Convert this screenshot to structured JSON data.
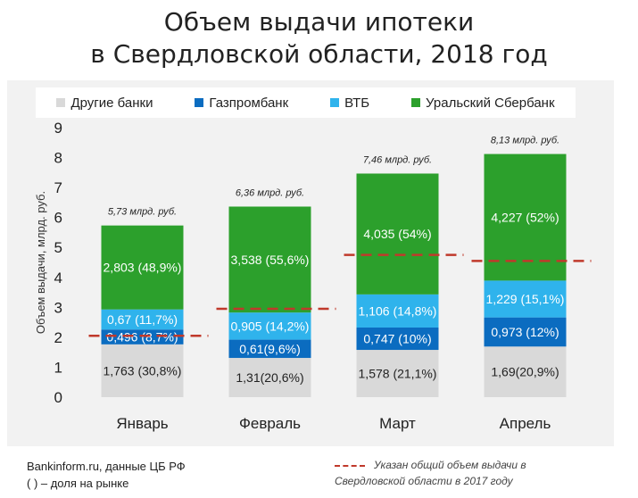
{
  "title_line1": "Объем выдачи ипотеки",
  "title_line2": "в Свердловской области, 2018 год",
  "colors": {
    "other": "#d9d9d9",
    "gazprom": "#0b6cc0",
    "vtb": "#2fb3ec",
    "sber": "#2ca02c",
    "ref_line": "#c0392b",
    "plot_bg": "#f2f2f2"
  },
  "legend": [
    "Другие банки",
    "Газпромбанк",
    "ВТБ",
    "Уральский Сбербанк"
  ],
  "footer": {
    "source": "Bankinform.ru,  данные ЦБ РФ",
    "note": "( ) – доля на рынке",
    "ref_line1": "Указан общий объем выдачи в",
    "ref_line2": "Свердловской области в 2017 году"
  },
  "chart_data": {
    "type": "bar",
    "stacked": true,
    "categories": [
      "Январь",
      "Февраль",
      "Март",
      "Апрель"
    ],
    "ylabel": "Объем выдачи, млрд. руб.",
    "ylim": [
      0,
      9
    ],
    "yticks": [
      0,
      1,
      2,
      3,
      4,
      5,
      6,
      7,
      8,
      9
    ],
    "grid": false,
    "legend_position": "top",
    "series": [
      {
        "name": "Другие банки",
        "values": [
          1.763,
          1.31,
          1.578,
          1.69
        ],
        "labels": [
          "1,763 (30,8%)",
          "1,31(20,6%)",
          "1,578 (21,1%)",
          "1,69(20,9%)"
        ]
      },
      {
        "name": "Газпромбанк",
        "values": [
          0.496,
          0.61,
          0.747,
          0.973
        ],
        "labels": [
          "0,496 (8,7%)",
          "0,61(9,6%)",
          "0,747 (10%)",
          "0,973 (12%)"
        ]
      },
      {
        "name": "ВТБ",
        "values": [
          0.67,
          0.905,
          1.106,
          1.229
        ],
        "labels": [
          "0,67 (11,7%)",
          "0,905 (14,2%)",
          "1,106 (14,8%)",
          "1,229 (15,1%)"
        ]
      },
      {
        "name": "Уральский Сбербанк",
        "values": [
          2.803,
          3.538,
          4.035,
          4.227
        ],
        "labels": [
          "2,803 (48,9%)",
          "3,538 (55,6%)",
          "4,035 (54%)",
          "4,227 (52%)"
        ]
      }
    ],
    "totals": [
      5.73,
      6.36,
      7.46,
      8.13
    ],
    "total_labels": [
      "5,73 млрд. руб.",
      "6,36 млрд. руб.",
      "7,46 млрд. руб.",
      "8,13 млрд. руб."
    ],
    "reference_2017": [
      2.05,
      2.95,
      4.75,
      4.55
    ]
  }
}
